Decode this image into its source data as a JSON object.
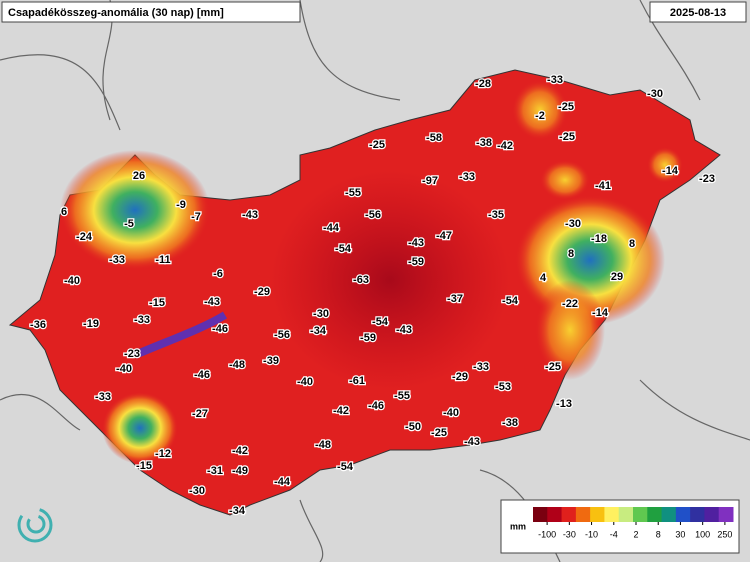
{
  "map": {
    "title": "Csapadékösszeg-anomália (30 nap) [mm]",
    "date": "2025-08-13",
    "stations": [
      -28,
      -33,
      -2,
      -25,
      -30,
      -25,
      -25,
      -58,
      -38,
      -42,
      -14,
      -23,
      -97,
      -33,
      -41,
      26,
      -55,
      -9,
      6,
      -7,
      -43,
      -56,
      -35,
      -30,
      -5,
      -44,
      -47,
      -18,
      8,
      -24,
      -54,
      -43,
      8,
      -33,
      -11,
      -59,
      29,
      -40,
      -6,
      -63,
      4,
      -29,
      -15,
      -43,
      -37,
      -54,
      -22,
      -14,
      -36,
      -19,
      -33,
      -30,
      -54,
      -43,
      -46,
      -34,
      -56,
      -59,
      -23,
      -40,
      -48,
      -39,
      -33,
      -25,
      -46,
      -29,
      -40,
      -61,
      -53,
      -33,
      -55,
      -13,
      -27,
      -42,
      -46,
      -40,
      -38,
      -50,
      -25,
      -48,
      -43,
      -42,
      -12,
      -15,
      -31,
      -49,
      -54,
      -44,
      -30,
      -34
    ],
    "legend": {
      "unit": "mm",
      "ticks": [
        -100,
        -30,
        -10,
        -4,
        2,
        8,
        30,
        100,
        250
      ],
      "colors": [
        "#7a0010",
        "#b00018",
        "#e0201c",
        "#f06a10",
        "#f8c010",
        "#fff060",
        "#c8ec80",
        "#60c850",
        "#20a040",
        "#109080",
        "#2050c8",
        "#3030a0",
        "#5020a0",
        "#8030c0"
      ]
    }
  }
}
